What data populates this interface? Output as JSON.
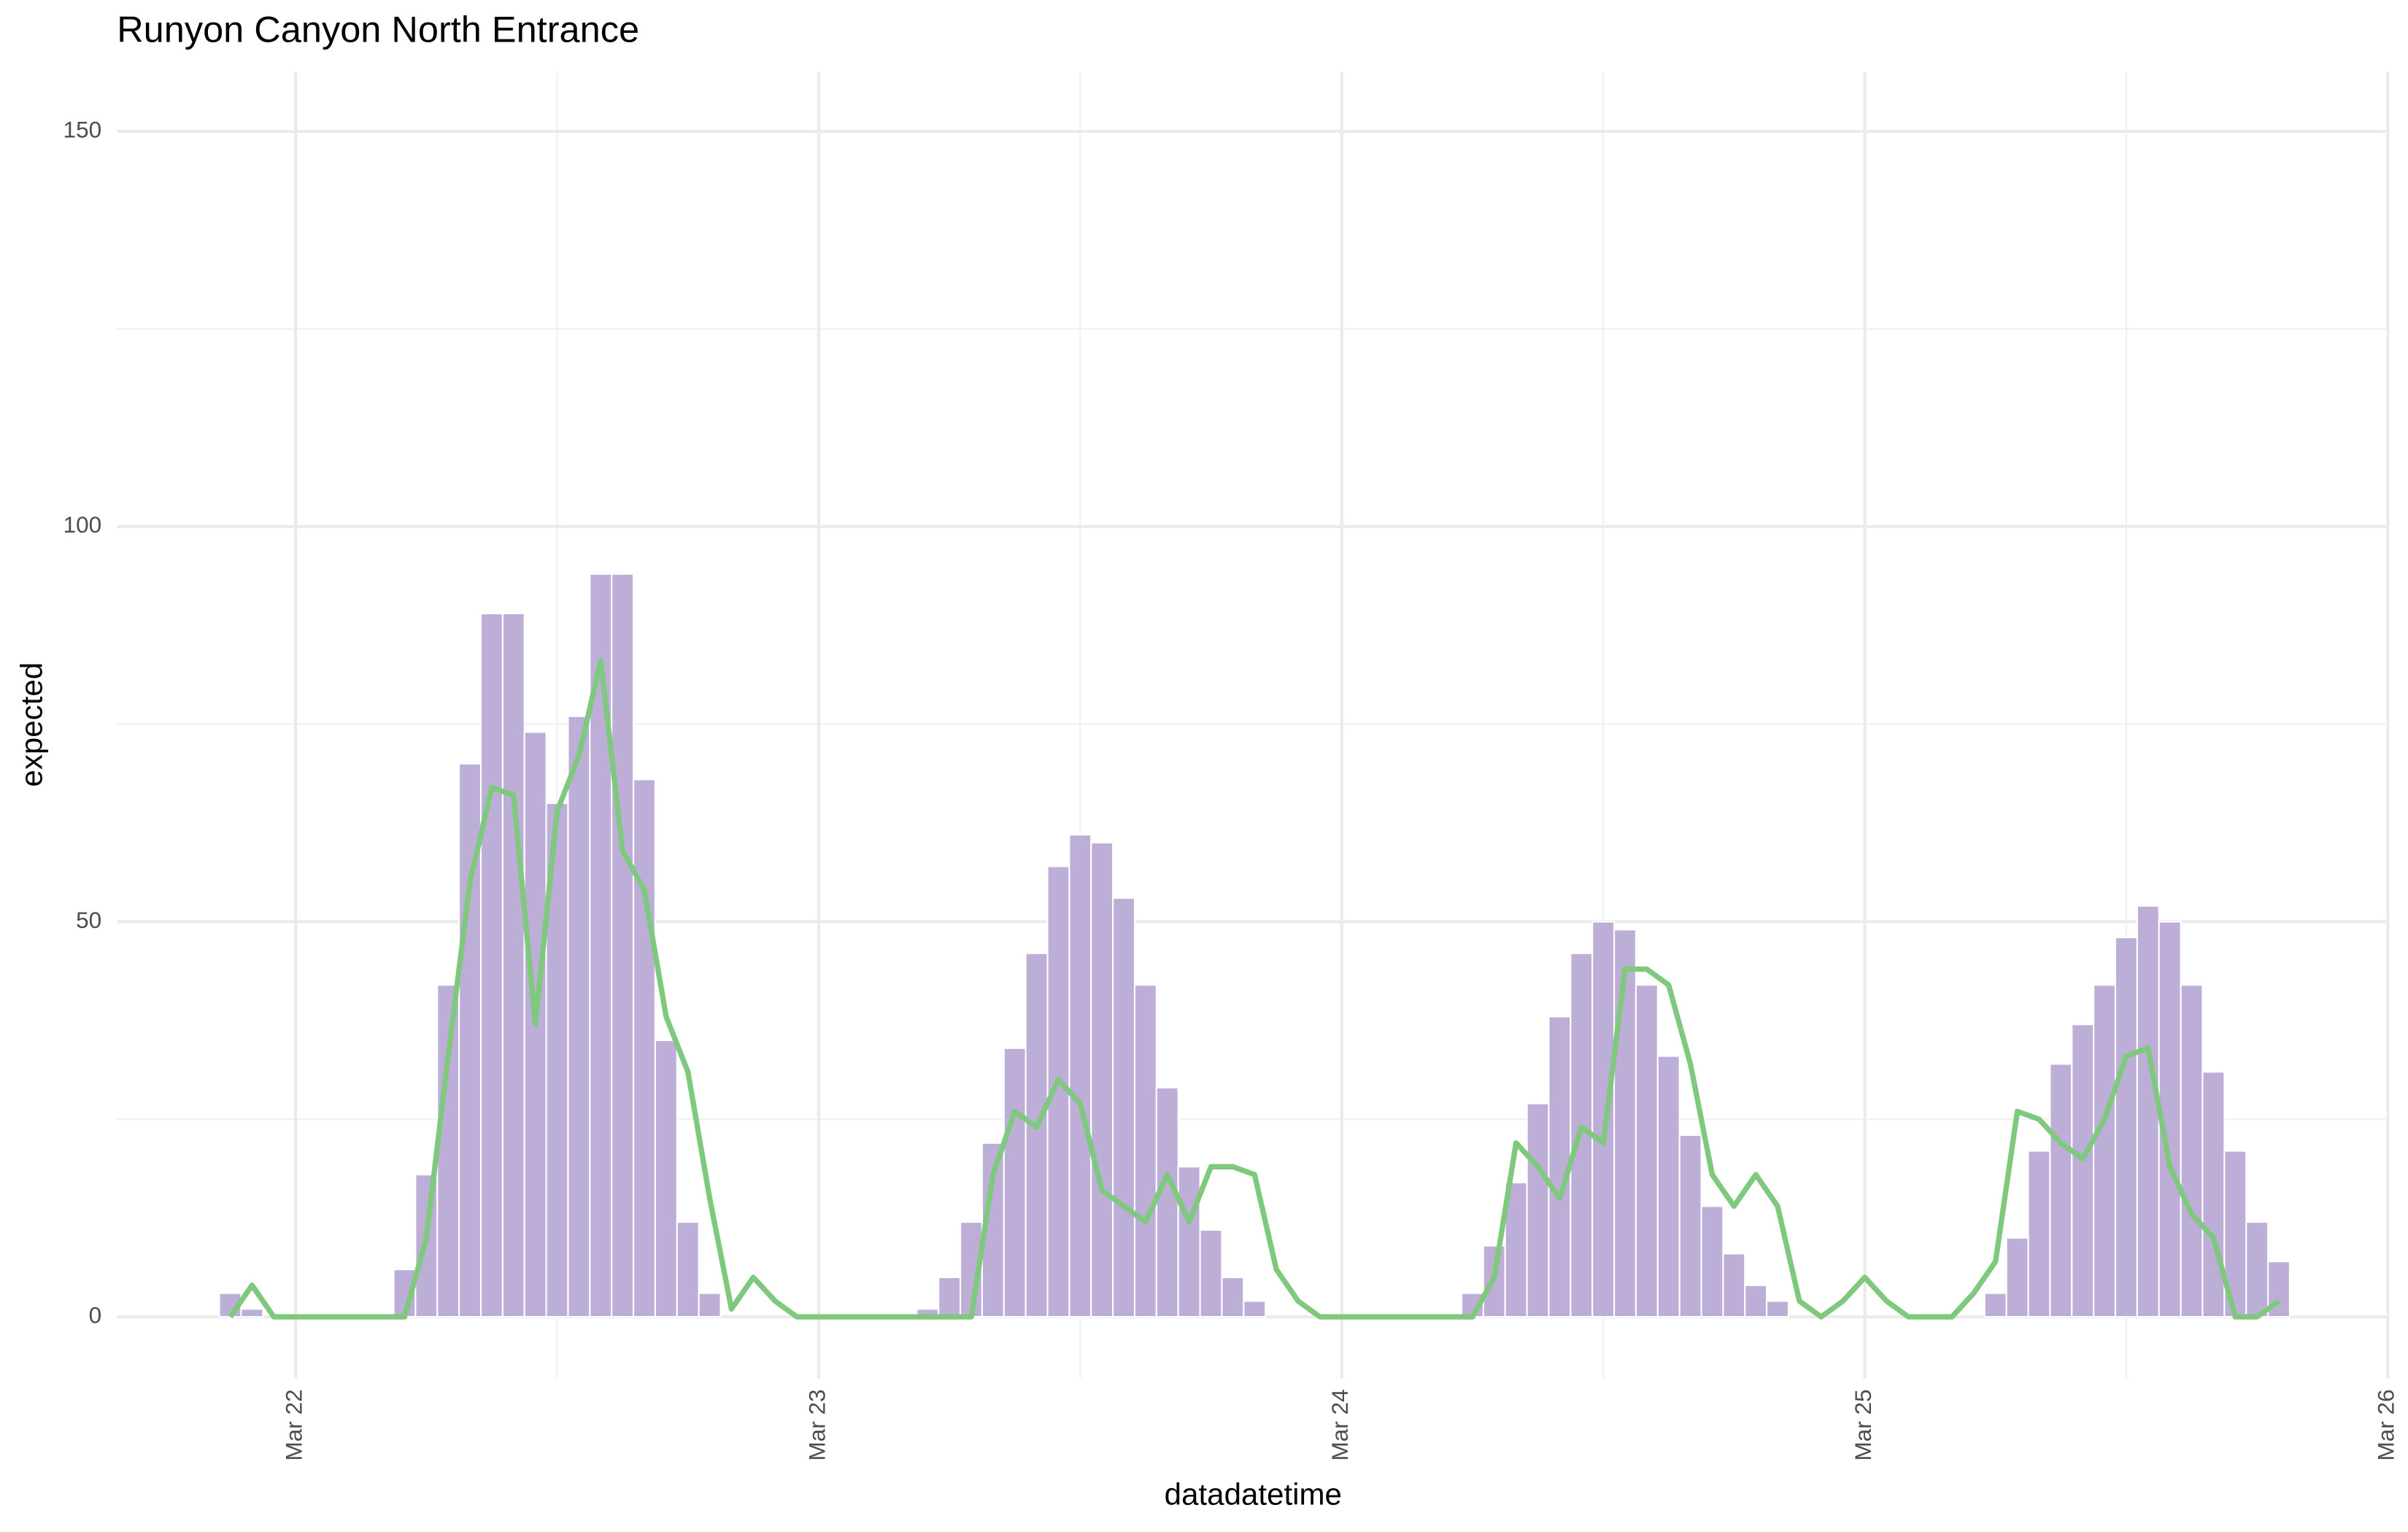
{
  "chart_data": {
    "type": "bar",
    "title": "Runyon Canyon North Entrance",
    "x_label": "datadatetime",
    "y_label": "expected",
    "x": [
      -3,
      -2,
      -1,
      0,
      1,
      2,
      3,
      4,
      5,
      6,
      7,
      8,
      9,
      10,
      11,
      12,
      13,
      14,
      15,
      16,
      17,
      18,
      19,
      20,
      21,
      22,
      23,
      24,
      25,
      26,
      27,
      28,
      29,
      30,
      31,
      32,
      33,
      34,
      35,
      36,
      37,
      38,
      39,
      40,
      41,
      42,
      43,
      44,
      45,
      46,
      47,
      48,
      49,
      50,
      51,
      52,
      53,
      54,
      55,
      56,
      57,
      58,
      59,
      60,
      61,
      62,
      63,
      64,
      65,
      66,
      67,
      68,
      69,
      70,
      71,
      72,
      73,
      74,
      75,
      76,
      77,
      78,
      79,
      80,
      81,
      82,
      83,
      84,
      85,
      86,
      87,
      88,
      89,
      90,
      91
    ],
    "series": [
      {
        "type": "bar",
        "color": "#bcaed6",
        "values": [
          3,
          1,
          0,
          0,
          0,
          0,
          0,
          0,
          6,
          18,
          42,
          70,
          89,
          89,
          74,
          65,
          76,
          94,
          94,
          68,
          35,
          12,
          3,
          0,
          0,
          0,
          0,
          0,
          0,
          0,
          0,
          0,
          1,
          5,
          12,
          22,
          34,
          46,
          57,
          61,
          60,
          53,
          42,
          29,
          19,
          11,
          5,
          2,
          0,
          0,
          0,
          0,
          0,
          0,
          0,
          0,
          0,
          3,
          9,
          17,
          27,
          38,
          46,
          50,
          49,
          42,
          33,
          23,
          14,
          8,
          4,
          2,
          0,
          0,
          0,
          0,
          0,
          0,
          0,
          0,
          0,
          3,
          10,
          21,
          32,
          37,
          42,
          48,
          52,
          50,
          42,
          31,
          21,
          12,
          7
        ]
      },
      {
        "type": "line",
        "color": "#7fc97f",
        "values": [
          0,
          4,
          0,
          0,
          0,
          0,
          0,
          0,
          0,
          10,
          33,
          55,
          67,
          66,
          37,
          64,
          71,
          83,
          59,
          54,
          38,
          31,
          15,
          1,
          5,
          2,
          0,
          0,
          0,
          0,
          0,
          0,
          0,
          0,
          0,
          18,
          26,
          24,
          30,
          27,
          16,
          14,
          12,
          18,
          12,
          19,
          19,
          18,
          6,
          2,
          0,
          0,
          0,
          0,
          0,
          0,
          0,
          0,
          5,
          22,
          19,
          15,
          24,
          22,
          44,
          44,
          42,
          32,
          18,
          14,
          18,
          14,
          2,
          0,
          2,
          5,
          2,
          0,
          0,
          0,
          3,
          7,
          26,
          25,
          22,
          20,
          25,
          33,
          34,
          19,
          13,
          10,
          0,
          0,
          2
        ]
      }
    ],
    "xlim": [
      -8.2,
      96
    ],
    "xticks": [
      {
        "value": 0,
        "label": "Mar 22"
      },
      {
        "value": 24,
        "label": "Mar 23"
      },
      {
        "value": 48,
        "label": "Mar 24"
      },
      {
        "value": 72,
        "label": "Mar 25"
      },
      {
        "value": 96,
        "label": "Mar 26"
      }
    ],
    "x_minor_ticks": [
      12,
      36,
      60,
      84
    ],
    "ylim": [
      -7.8,
      157.5
    ],
    "yticks": [
      0,
      50,
      100,
      150
    ],
    "y_minor_ticks": [
      25,
      75,
      125
    ],
    "grid": true
  }
}
